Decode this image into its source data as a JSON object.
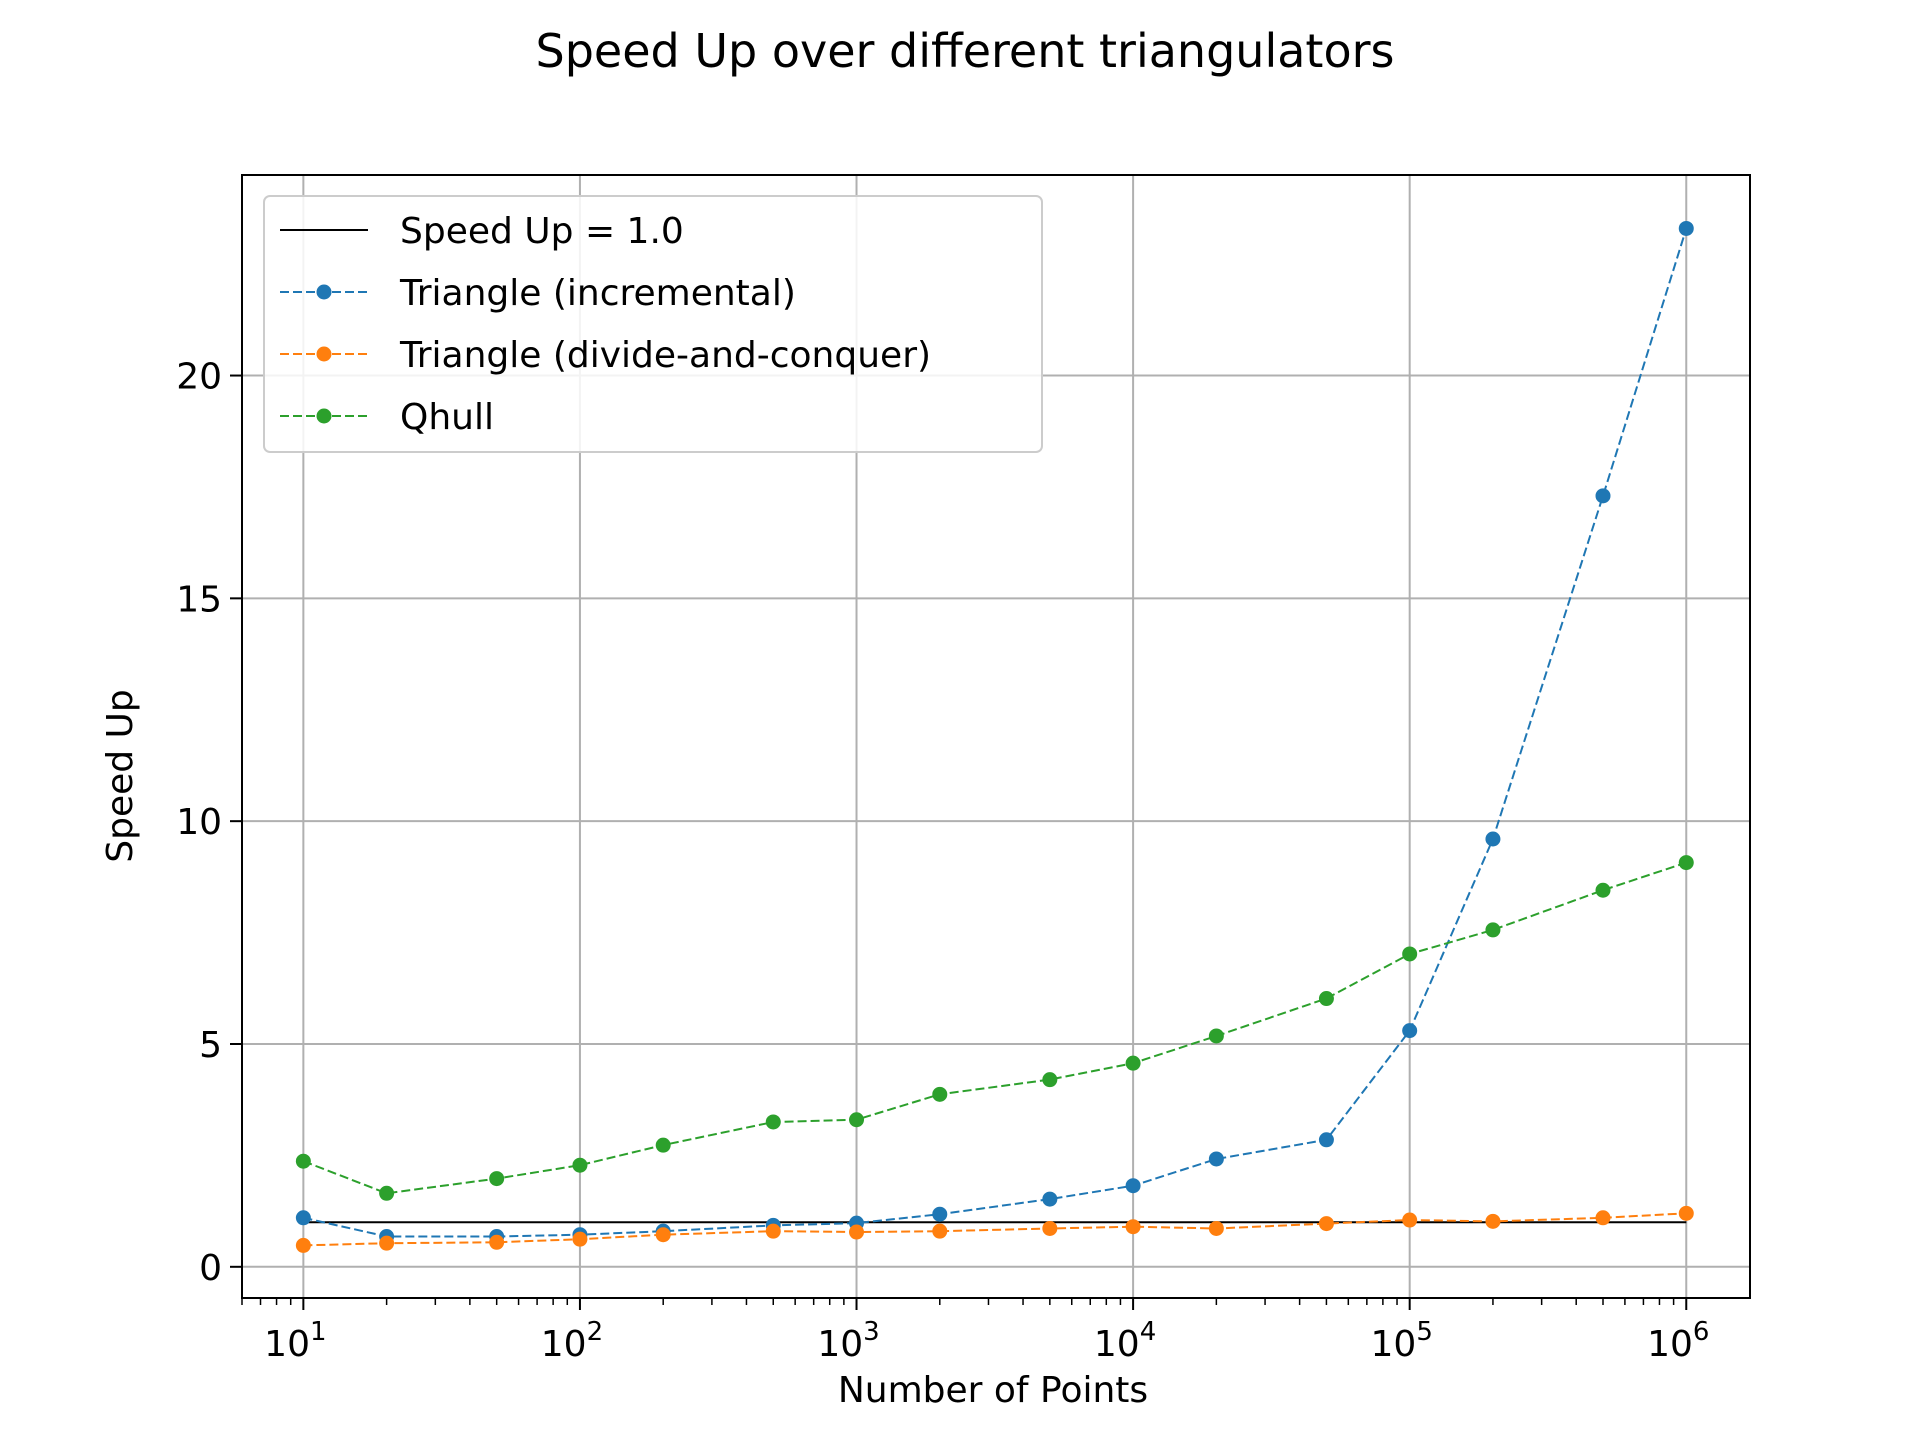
{
  "chart_data": {
    "type": "line",
    "title": "Speed Up over different triangulators",
    "xlabel": "Number of Points",
    "ylabel": "Speed Up",
    "x_scale": "log",
    "xlim": [
      6,
      1700000
    ],
    "ylim": [
      -0.7,
      24.5
    ],
    "x_ticks": [
      10,
      100,
      1000,
      10000,
      100000,
      1000000
    ],
    "x_tick_labels": [
      {
        "base": "10",
        "exp": "1"
      },
      {
        "base": "10",
        "exp": "2"
      },
      {
        "base": "10",
        "exp": "3"
      },
      {
        "base": "10",
        "exp": "4"
      },
      {
        "base": "10",
        "exp": "5"
      },
      {
        "base": "10",
        "exp": "6"
      }
    ],
    "y_ticks": [
      0,
      5,
      10,
      15,
      20
    ],
    "y_tick_labels": [
      "0",
      "5",
      "10",
      "15",
      "20"
    ],
    "grid": true,
    "legend_position": "upper-left",
    "x": [
      10,
      20,
      50,
      100,
      200,
      500,
      1000,
      2000,
      5000,
      10000,
      20000,
      50000,
      100000,
      200000,
      500000,
      1000000
    ],
    "series": [
      {
        "name": "Speed Up = 1.0",
        "color": "#000000",
        "style": "solid",
        "markers": false,
        "x": [
          10,
          1000000
        ],
        "values": [
          1.0,
          1.0
        ]
      },
      {
        "name": "Triangle (incremental)",
        "color": "#1f77b4",
        "style": "dashed",
        "markers": true,
        "values": [
          1.1,
          0.68,
          0.68,
          0.72,
          0.8,
          0.93,
          0.98,
          1.18,
          1.52,
          1.82,
          2.42,
          2.85,
          5.3,
          9.6,
          17.3,
          23.3
        ]
      },
      {
        "name": "Triangle (divide-and-conquer)",
        "color": "#ff7f0e",
        "style": "dashed",
        "markers": true,
        "values": [
          0.48,
          0.53,
          0.55,
          0.62,
          0.72,
          0.8,
          0.78,
          0.8,
          0.86,
          0.9,
          0.86,
          0.97,
          1.05,
          1.02,
          1.1,
          1.2
        ]
      },
      {
        "name": "Qhull",
        "color": "#2ca02c",
        "style": "dashed",
        "markers": true,
        "values": [
          2.37,
          1.65,
          1.98,
          2.28,
          2.73,
          3.25,
          3.3,
          3.87,
          4.2,
          4.57,
          5.18,
          6.02,
          7.02,
          7.56,
          8.45,
          9.07
        ]
      }
    ]
  }
}
